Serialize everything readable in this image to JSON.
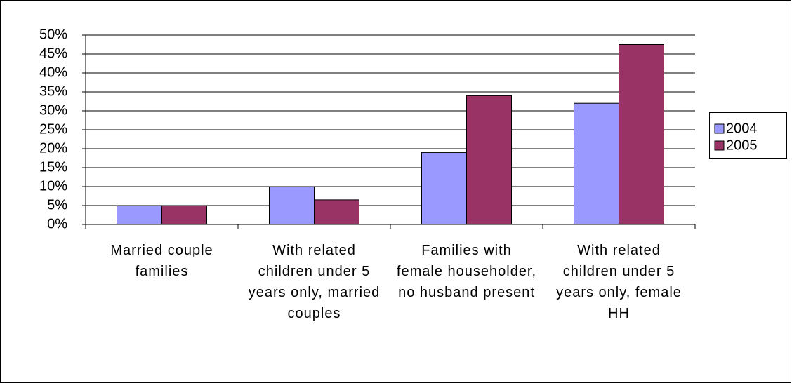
{
  "chart_data": {
    "type": "bar",
    "categories": [
      "Married couple families",
      "With related children under 5 years only, married couples",
      "Families with female householder, no husband present",
      "With related children under 5 years only, female HH"
    ],
    "series": [
      {
        "name": "2004",
        "color": "#9999ff",
        "values": [
          5,
          10,
          19,
          32
        ]
      },
      {
        "name": "2005",
        "color": "#993366",
        "values": [
          5,
          6.5,
          34,
          47.5
        ]
      }
    ],
    "ylim": [
      0,
      50
    ],
    "yticks": [
      {
        "value": 0,
        "label": "0%"
      },
      {
        "value": 5,
        "label": "5%"
      },
      {
        "value": 10,
        "label": "10%"
      },
      {
        "value": 15,
        "label": "15%"
      },
      {
        "value": 20,
        "label": "20%"
      },
      {
        "value": 25,
        "label": "25%"
      },
      {
        "value": 30,
        "label": "30%"
      },
      {
        "value": 35,
        "label": "35%"
      },
      {
        "value": 40,
        "label": "40%"
      },
      {
        "value": 45,
        "label": "45%"
      },
      {
        "value": 50,
        "label": "50%"
      }
    ],
    "grid": true,
    "legend": "right"
  }
}
